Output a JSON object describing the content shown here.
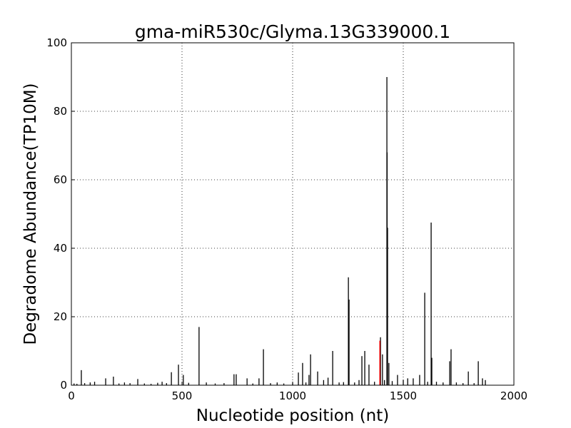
{
  "chart_data": {
    "type": "stem",
    "title": "gma-miR530c/Glyma.13G339000.1",
    "xlabel": "Nucleotide position (nt)",
    "ylabel": "Degradome Abundance(TP10M)",
    "x": [
      12,
      25,
      45,
      60,
      85,
      105,
      155,
      190,
      215,
      240,
      265,
      300,
      330,
      360,
      390,
      410,
      430,
      452,
      484,
      506,
      530,
      577,
      610,
      650,
      690,
      735,
      745,
      794,
      820,
      848,
      868,
      900,
      930,
      960,
      1000,
      1026,
      1045,
      1060,
      1074,
      1081,
      1113,
      1140,
      1160,
      1181,
      1210,
      1230,
      1252,
      1255,
      1280,
      1300,
      1313,
      1326,
      1345,
      1370,
      1397,
      1406,
      1415,
      1426,
      1427,
      1429,
      1435,
      1450,
      1474,
      1500,
      1520,
      1545,
      1574,
      1597,
      1610,
      1626,
      1629,
      1650,
      1680,
      1710,
      1716,
      1740,
      1770,
      1794,
      1820,
      1839,
      1858,
      1871
    ],
    "values": [
      0.5,
      0.4,
      4.4,
      0.6,
      0.8,
      1,
      2,
      2.5,
      0.5,
      0.8,
      0.6,
      1.8,
      0.5,
      0.4,
      0.7,
      1,
      0.6,
      3.8,
      6,
      3,
      0.7,
      17,
      0.8,
      0.5,
      0.6,
      3.2,
      3.2,
      2,
      0.5,
      2,
      10.5,
      0.6,
      0.8,
      0.5,
      0.7,
      3.7,
      6.5,
      0.8,
      3,
      9,
      4,
      1.5,
      2.2,
      10,
      0.8,
      0.9,
      31.5,
      25,
      0.8,
      1.5,
      8.5,
      10,
      6,
      1,
      14,
      9,
      1.5,
      90,
      68,
      46,
      6.5,
      1.2,
      3,
      1.5,
      2,
      2,
      3,
      27,
      1,
      47.5,
      8,
      1,
      0.8,
      7,
      10.5,
      0.8,
      0.6,
      4,
      0.6,
      7,
      2,
      1.5
    ],
    "color": "#000000",
    "highlight": {
      "x": [
        1394
      ],
      "values": [
        13
      ],
      "color": "#ff0000"
    },
    "xlim": [
      0,
      2000
    ],
    "xticks": [
      0,
      500,
      1000,
      1500,
      2000
    ],
    "ylim": [
      0,
      100
    ],
    "yticks": [
      0,
      20,
      40,
      60,
      80,
      100
    ],
    "grid": true
  }
}
